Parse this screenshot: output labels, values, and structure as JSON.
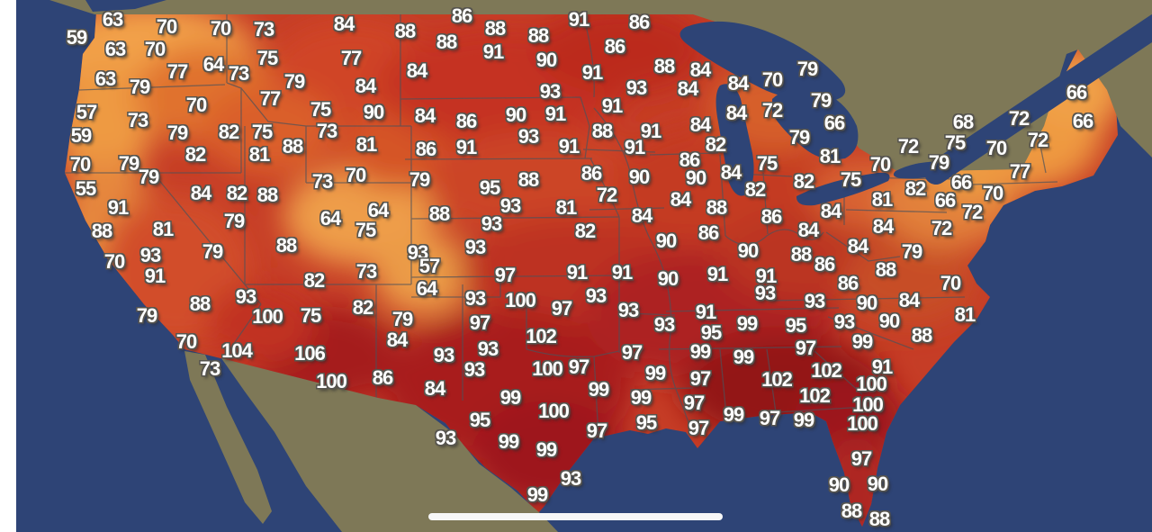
{
  "app": {
    "description": "United States temperature map with city readings",
    "home_indicator_icon": "home-indicator-bar"
  },
  "map": {
    "colors": {
      "ocean": "#2e4476",
      "foreign_land": "#7e7857",
      "us_base": "#c63d26",
      "temp_cool": "#f2a14a",
      "temp_hot": "#931217",
      "label_text": "#ffffff",
      "label_outline": "#56544e",
      "state_border": "#4d525a"
    },
    "stations": [
      [
        63,
        125,
        22
      ],
      [
        86,
        513,
        18
      ],
      [
        91,
        643,
        22
      ],
      [
        86,
        710,
        25
      ],
      [
        84,
        382,
        27
      ],
      [
        70,
        185,
        30
      ],
      [
        70,
        245,
        32
      ],
      [
        73,
        293,
        33
      ],
      [
        88,
        550,
        32
      ],
      [
        88,
        450,
        35
      ],
      [
        88,
        598,
        40
      ],
      [
        59,
        85,
        42
      ],
      [
        88,
        496,
        47
      ],
      [
        86,
        683,
        52
      ],
      [
        63,
        128,
        55
      ],
      [
        70,
        172,
        55
      ],
      [
        91,
        548,
        58
      ],
      [
        77,
        390,
        65
      ],
      [
        75,
        297,
        65
      ],
      [
        90,
        607,
        67
      ],
      [
        64,
        237,
        72
      ],
      [
        88,
        738,
        74
      ],
      [
        84,
        778,
        78
      ],
      [
        79,
        897,
        77
      ],
      [
        84,
        463,
        79
      ],
      [
        91,
        658,
        81
      ],
      [
        73,
        265,
        82
      ],
      [
        77,
        197,
        80
      ],
      [
        63,
        117,
        88
      ],
      [
        70,
        858,
        89
      ],
      [
        79,
        327,
        91
      ],
      [
        84,
        820,
        93
      ],
      [
        84,
        406,
        96
      ],
      [
        93,
        707,
        98
      ],
      [
        84,
        764,
        99
      ],
      [
        66,
        1196,
        103
      ],
      [
        93,
        611,
        102
      ],
      [
        79,
        155,
        97
      ],
      [
        77,
        300,
        110
      ],
      [
        79,
        912,
        112
      ],
      [
        70,
        218,
        117
      ],
      [
        91,
        680,
        118
      ],
      [
        75,
        356,
        122
      ],
      [
        90,
        415,
        125
      ],
      [
        91,
        617,
        127
      ],
      [
        90,
        573,
        128
      ],
      [
        84,
        472,
        129
      ],
      [
        86,
        518,
        135
      ],
      [
        84,
        818,
        126
      ],
      [
        72,
        858,
        123
      ],
      [
        57,
        96,
        125
      ],
      [
        66,
        927,
        137
      ],
      [
        68,
        1070,
        136
      ],
      [
        72,
        1132,
        132
      ],
      [
        66,
        1203,
        135
      ],
      [
        73,
        153,
        134
      ],
      [
        84,
        778,
        139
      ],
      [
        73,
        363,
        146
      ],
      [
        88,
        669,
        146
      ],
      [
        91,
        723,
        146
      ],
      [
        79,
        197,
        148
      ],
      [
        82,
        254,
        147
      ],
      [
        75,
        291,
        147
      ],
      [
        59,
        90,
        151
      ],
      [
        93,
        587,
        152
      ],
      [
        79,
        888,
        153
      ],
      [
        72,
        1153,
        156
      ],
      [
        75,
        1061,
        159
      ],
      [
        81,
        407,
        161
      ],
      [
        88,
        325,
        163
      ],
      [
        91,
        632,
        163
      ],
      [
        91,
        705,
        164
      ],
      [
        72,
        1009,
        163
      ],
      [
        82,
        795,
        161
      ],
      [
        86,
        473,
        166
      ],
      [
        91,
        518,
        164
      ],
      [
        70,
        1107,
        165
      ],
      [
        82,
        217,
        172
      ],
      [
        81,
        288,
        172
      ],
      [
        81,
        922,
        174
      ],
      [
        86,
        766,
        178
      ],
      [
        70,
        89,
        183
      ],
      [
        79,
        143,
        182
      ],
      [
        75,
        852,
        182
      ],
      [
        70,
        978,
        183
      ],
      [
        79,
        1043,
        181
      ],
      [
        77,
        1133,
        191
      ],
      [
        84,
        812,
        192
      ],
      [
        70,
        395,
        195
      ],
      [
        79,
        165,
        197
      ],
      [
        90,
        773,
        198
      ],
      [
        86,
        657,
        193
      ],
      [
        79,
        466,
        200
      ],
      [
        73,
        358,
        202
      ],
      [
        88,
        587,
        200
      ],
      [
        75,
        945,
        200
      ],
      [
        82,
        893,
        202
      ],
      [
        66,
        1068,
        203
      ],
      [
        95,
        544,
        209
      ],
      [
        55,
        95,
        210
      ],
      [
        90,
        710,
        197
      ],
      [
        82,
        839,
        211
      ],
      [
        82,
        1017,
        210
      ],
      [
        70,
        1103,
        215
      ],
      [
        84,
        223,
        215
      ],
      [
        82,
        263,
        215
      ],
      [
        88,
        297,
        217
      ],
      [
        72,
        674,
        217
      ],
      [
        84,
        756,
        222
      ],
      [
        66,
        1050,
        223
      ],
      [
        81,
        980,
        222
      ],
      [
        84,
        923,
        235
      ],
      [
        86,
        857,
        241
      ],
      [
        88,
        796,
        231
      ],
      [
        93,
        567,
        229
      ],
      [
        81,
        629,
        231
      ],
      [
        64,
        420,
        234
      ],
      [
        91,
        131,
        231
      ],
      [
        84,
        713,
        240
      ],
      [
        72,
        1080,
        236
      ],
      [
        88,
        488,
        238
      ],
      [
        64,
        367,
        243
      ],
      [
        79,
        260,
        246
      ],
      [
        93,
        546,
        249
      ],
      [
        84,
        981,
        252
      ],
      [
        72,
        1046,
        254
      ],
      [
        75,
        406,
        256
      ],
      [
        84,
        898,
        256
      ],
      [
        88,
        113,
        257
      ],
      [
        81,
        181,
        255
      ],
      [
        82,
        650,
        257
      ],
      [
        86,
        787,
        259
      ],
      [
        90,
        740,
        268
      ],
      [
        88,
        318,
        273
      ],
      [
        84,
        953,
        274
      ],
      [
        93,
        528,
        275
      ],
      [
        79,
        236,
        280
      ],
      [
        90,
        831,
        279
      ],
      [
        79,
        1013,
        280
      ],
      [
        93,
        464,
        281
      ],
      [
        88,
        890,
        283
      ],
      [
        93,
        167,
        284
      ],
      [
        70,
        127,
        291
      ],
      [
        86,
        916,
        294
      ],
      [
        57,
        477,
        296
      ],
      [
        88,
        984,
        300
      ],
      [
        73,
        407,
        302
      ],
      [
        91,
        641,
        303
      ],
      [
        91,
        691,
        303
      ],
      [
        91,
        797,
        305
      ],
      [
        97,
        561,
        306
      ],
      [
        91,
        851,
        307
      ],
      [
        91,
        172,
        307
      ],
      [
        82,
        349,
        312
      ],
      [
        90,
        742,
        310
      ],
      [
        86,
        942,
        315
      ],
      [
        70,
        1056,
        315
      ],
      [
        64,
        474,
        321
      ],
      [
        93,
        850,
        326
      ],
      [
        93,
        662,
        329
      ],
      [
        93,
        273,
        330
      ],
      [
        84,
        1010,
        334
      ],
      [
        93,
        528,
        332
      ],
      [
        100,
        578,
        334
      ],
      [
        93,
        905,
        335
      ],
      [
        90,
        963,
        337
      ],
      [
        88,
        222,
        338
      ],
      [
        82,
        403,
        342
      ],
      [
        97,
        624,
        343
      ],
      [
        93,
        698,
        345
      ],
      [
        91,
        784,
        347
      ],
      [
        81,
        1072,
        350
      ],
      [
        79,
        163,
        351
      ],
      [
        100,
        297,
        352
      ],
      [
        75,
        345,
        351
      ],
      [
        79,
        447,
        355
      ],
      [
        93,
        938,
        358
      ],
      [
        90,
        988,
        357
      ],
      [
        97,
        533,
        359
      ],
      [
        99,
        830,
        360
      ],
      [
        93,
        738,
        361
      ],
      [
        95,
        884,
        362
      ],
      [
        95,
        790,
        370
      ],
      [
        88,
        1024,
        373
      ],
      [
        102,
        601,
        374
      ],
      [
        84,
        441,
        378
      ],
      [
        70,
        207,
        380
      ],
      [
        99,
        958,
        380
      ],
      [
        97,
        895,
        387
      ],
      [
        93,
        542,
        388
      ],
      [
        97,
        702,
        392
      ],
      [
        99,
        778,
        391
      ],
      [
        104,
        263,
        390
      ],
      [
        106,
        344,
        393
      ],
      [
        93,
        493,
        395
      ],
      [
        99,
        826,
        397
      ],
      [
        91,
        980,
        408
      ],
      [
        97,
        643,
        408
      ],
      [
        100,
        608,
        410
      ],
      [
        73,
        233,
        410
      ],
      [
        93,
        527,
        411
      ],
      [
        102,
        918,
        412
      ],
      [
        99,
        728,
        415
      ],
      [
        97,
        778,
        421
      ],
      [
        86,
        425,
        420
      ],
      [
        102,
        863,
        422
      ],
      [
        100,
        368,
        424
      ],
      [
        100,
        968,
        427
      ],
      [
        84,
        483,
        432
      ],
      [
        99,
        665,
        433
      ],
      [
        102,
        905,
        440
      ],
      [
        99,
        712,
        442
      ],
      [
        99,
        567,
        442
      ],
      [
        97,
        771,
        448
      ],
      [
        100,
        964,
        450
      ],
      [
        100,
        615,
        457
      ],
      [
        99,
        815,
        461
      ],
      [
        97,
        855,
        465
      ],
      [
        95,
        533,
        467
      ],
      [
        99,
        893,
        467
      ],
      [
        95,
        718,
        470
      ],
      [
        100,
        958,
        471
      ],
      [
        97,
        776,
        476
      ],
      [
        97,
        663,
        479
      ],
      [
        93,
        495,
        487
      ],
      [
        99,
        565,
        491
      ],
      [
        99,
        607,
        500
      ],
      [
        97,
        957,
        510
      ],
      [
        93,
        634,
        532
      ],
      [
        90,
        932,
        539
      ],
      [
        90,
        975,
        538
      ],
      [
        99,
        597,
        550
      ],
      [
        88,
        946,
        568
      ],
      [
        88,
        977,
        577
      ]
    ]
  }
}
